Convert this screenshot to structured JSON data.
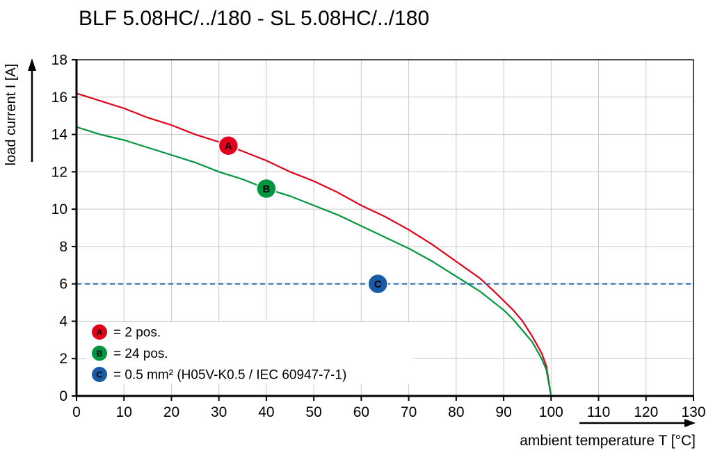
{
  "chart_data": {
    "type": "line",
    "title": "BLF 5.08HC/../180 - SL 5.08HC/../180",
    "xlabel": "ambient temperature T [°C]",
    "ylabel": "load current I [A]",
    "xlim": [
      0,
      130
    ],
    "ylim": [
      0,
      18
    ],
    "xticks": [
      0,
      10,
      20,
      30,
      40,
      50,
      60,
      70,
      80,
      90,
      100,
      110,
      120,
      130
    ],
    "yticks": [
      0,
      2,
      4,
      6,
      8,
      10,
      12,
      14,
      16,
      18
    ],
    "grid": true,
    "legend_position": "lower-left",
    "colors": {
      "background": "#ffffff",
      "grid": "#c9c9c9",
      "axis": "#000000"
    },
    "series": [
      {
        "id": "A",
        "marker_label": "A",
        "legend": "= 2 pos.",
        "color": "#e2001a",
        "style": "solid",
        "marker": {
          "x": 32,
          "y": 13.4
        },
        "points": [
          [
            0,
            16.2
          ],
          [
            5,
            15.8
          ],
          [
            10,
            15.4
          ],
          [
            15,
            14.9
          ],
          [
            20,
            14.5
          ],
          [
            25,
            14.0
          ],
          [
            30,
            13.6
          ],
          [
            35,
            13.1
          ],
          [
            40,
            12.6
          ],
          [
            45,
            12.0
          ],
          [
            50,
            11.5
          ],
          [
            55,
            10.9
          ],
          [
            60,
            10.2
          ],
          [
            65,
            9.6
          ],
          [
            70,
            8.9
          ],
          [
            75,
            8.1
          ],
          [
            80,
            7.2
          ],
          [
            85,
            6.3
          ],
          [
            88,
            5.6
          ],
          [
            90,
            5.1
          ],
          [
            92,
            4.6
          ],
          [
            94,
            4.0
          ],
          [
            96,
            3.2
          ],
          [
            98,
            2.3
          ],
          [
            99,
            1.6
          ],
          [
            100,
            0
          ]
        ]
      },
      {
        "id": "B",
        "marker_label": "B",
        "legend": "= 24 pos.",
        "color": "#009640",
        "style": "solid",
        "marker": {
          "x": 40,
          "y": 11.1
        },
        "points": [
          [
            0,
            14.4
          ],
          [
            5,
            14.0
          ],
          [
            10,
            13.7
          ],
          [
            15,
            13.3
          ],
          [
            20,
            12.9
          ],
          [
            25,
            12.5
          ],
          [
            30,
            12.0
          ],
          [
            35,
            11.6
          ],
          [
            40,
            11.1
          ],
          [
            45,
            10.7
          ],
          [
            50,
            10.2
          ],
          [
            55,
            9.7
          ],
          [
            60,
            9.1
          ],
          [
            65,
            8.5
          ],
          [
            70,
            7.9
          ],
          [
            75,
            7.2
          ],
          [
            80,
            6.4
          ],
          [
            85,
            5.6
          ],
          [
            88,
            5.0
          ],
          [
            90,
            4.6
          ],
          [
            92,
            4.1
          ],
          [
            94,
            3.5
          ],
          [
            96,
            2.9
          ],
          [
            98,
            2.0
          ],
          [
            99,
            1.4
          ],
          [
            100,
            0
          ]
        ]
      },
      {
        "id": "C",
        "marker_label": "C",
        "legend": "= 0.5 mm² (H05V-K0.5 / IEC 60947-7-1)",
        "color": "#1a5ba6",
        "style": "dashed",
        "marker": {
          "x": 63.5,
          "y": 6
        },
        "points": [
          [
            0,
            6
          ],
          [
            130,
            6
          ]
        ]
      }
    ]
  }
}
